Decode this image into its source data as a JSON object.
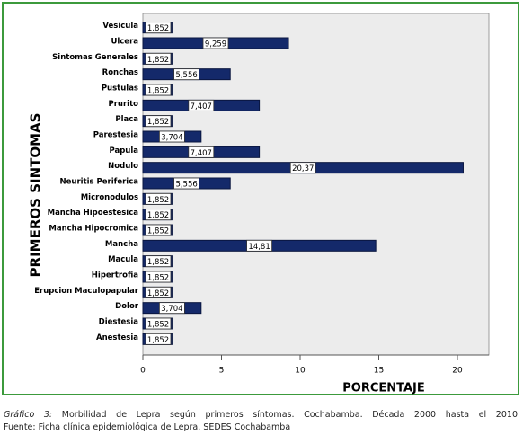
{
  "chart_data": {
    "type": "bar",
    "orientation": "horizontal",
    "y_axis_label": "PRIMEROS SINTOMAS",
    "x_axis_label": "PORCENTAJE",
    "categories": [
      "Vesicula",
      "Ulcera",
      "Sintomas Generales",
      "Ronchas",
      "Pustulas",
      "Prurito",
      "Placa",
      "Parestesia",
      "Papula",
      "Nodulo",
      "Neuritis Periferica",
      "Micronodulos",
      "Mancha Hipoestesica",
      "Mancha Hipocromica",
      "Mancha",
      "Macula",
      "Hipertrofia",
      "Erupcion Maculopapular",
      "Dolor",
      "Diestesia",
      "Anestesia"
    ],
    "values": [
      1.852,
      9.259,
      1.852,
      5.556,
      1.852,
      7.407,
      1.852,
      3.704,
      7.407,
      20.37,
      5.556,
      1.852,
      1.852,
      1.852,
      14.81,
      1.852,
      1.852,
      1.852,
      3.704,
      1.852,
      1.852
    ],
    "value_labels": [
      "1,852",
      "9,259",
      "1,852",
      "5,556",
      "1,852",
      "7,407",
      "1,852",
      "3,704",
      "7,407",
      "20,37",
      "5,556",
      "1,852",
      "1,852",
      "1,852",
      "14,81",
      "1,852",
      "1,852",
      "1,852",
      "3,704",
      "1,852",
      "1,852"
    ],
    "color": "#14296a",
    "xlim": [
      0,
      22
    ],
    "xticks": [
      0,
      5,
      10,
      15,
      20
    ]
  },
  "caption": {
    "label": "Gráfico 3:",
    "text": "Morbilidad de Lepra según primeros síntomas. Cochabamba. Década 2000 hasta el 2010",
    "source": "Fuente: Ficha clínica epidemiológica de Lepra. SEDES Cochabamba"
  }
}
